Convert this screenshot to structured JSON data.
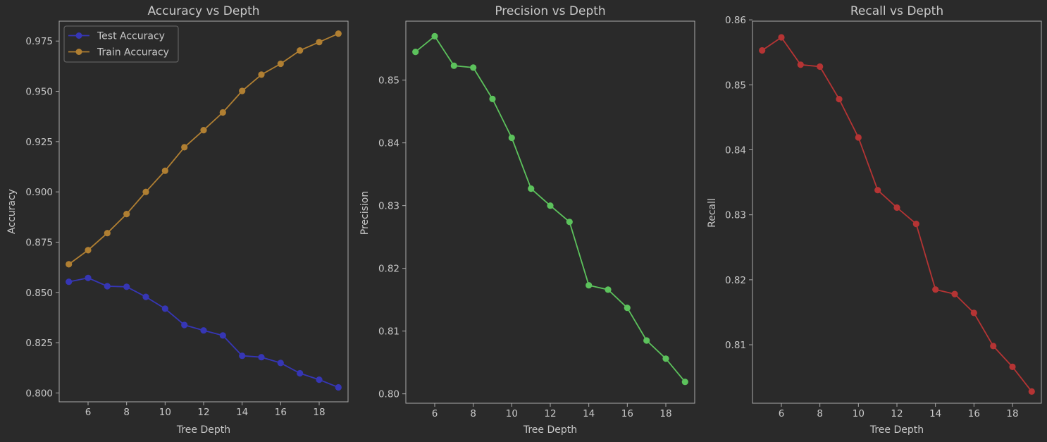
{
  "colors": {
    "background": "#2a2a2a",
    "axes_face": "#2a2a2a",
    "spine": "#aaaaaa",
    "text": "#c8c8c8",
    "test_accuracy": "#3636b5",
    "train_accuracy": "#b07f32",
    "precision": "#5cc25c",
    "recall": "#b53434"
  },
  "chart_data": [
    {
      "type": "line",
      "title": "Accuracy vs Depth",
      "xlabel": "Tree Depth",
      "ylabel": "Accuracy",
      "x": [
        5,
        6,
        7,
        8,
        9,
        10,
        11,
        12,
        13,
        14,
        15,
        16,
        17,
        18,
        19
      ],
      "xlim": [
        4.5,
        19.5
      ],
      "ylim": [
        0.7956,
        0.9849
      ],
      "xticks": [
        6,
        8,
        10,
        12,
        14,
        16,
        18
      ],
      "yticks": [
        "0.800",
        "0.825",
        "0.850",
        "0.875",
        "0.900",
        "0.925",
        "0.950",
        "0.975"
      ],
      "grid": false,
      "legend": "top-left",
      "series": [
        {
          "name": "Test Accuracy",
          "color": "#3636b5",
          "values": [
            0.8553,
            0.8572,
            0.8531,
            0.8528,
            0.8478,
            0.8419,
            0.8338,
            0.8311,
            0.8286,
            0.8185,
            0.8178,
            0.8149,
            0.8098,
            0.8066,
            0.8028
          ]
        },
        {
          "name": "Train Accuracy",
          "color": "#b07f32",
          "values": [
            0.864,
            0.871,
            0.8795,
            0.889,
            0.9,
            0.9105,
            0.9222,
            0.9307,
            0.9395,
            0.9502,
            0.9583,
            0.9637,
            0.9703,
            0.9745,
            0.9787
          ]
        }
      ]
    },
    {
      "type": "line",
      "title": "Precision vs Depth",
      "xlabel": "Tree Depth",
      "ylabel": "Precision",
      "x": [
        5,
        6,
        7,
        8,
        9,
        10,
        11,
        12,
        13,
        14,
        15,
        16,
        17,
        18,
        19
      ],
      "xlim": [
        4.5,
        19.5
      ],
      "ylim": [
        0.7985,
        0.8594
      ],
      "xticks": [
        6,
        8,
        10,
        12,
        14,
        16,
        18
      ],
      "yticks": [
        "0.80",
        "0.81",
        "0.82",
        "0.83",
        "0.84",
        "0.85"
      ],
      "grid": false,
      "series": [
        {
          "color": "#5cc25c",
          "values": [
            0.8545,
            0.857,
            0.8523,
            0.852,
            0.847,
            0.8408,
            0.8327,
            0.83,
            0.8274,
            0.8173,
            0.8166,
            0.8137,
            0.8085,
            0.8056,
            0.8019
          ]
        }
      ]
    },
    {
      "type": "line",
      "title": "Recall vs Depth",
      "xlabel": "Tree Depth",
      "ylabel": "Recall",
      "x": [
        5,
        6,
        7,
        8,
        9,
        10,
        11,
        12,
        13,
        14,
        15,
        16,
        17,
        18,
        19
      ],
      "xlim": [
        4.5,
        19.5
      ],
      "ylim": [
        0.801,
        0.8598
      ],
      "xticks": [
        6,
        8,
        10,
        12,
        14,
        16,
        18
      ],
      "yticks": [
        "0.81",
        "0.82",
        "0.83",
        "0.84",
        "0.85",
        "0.86"
      ],
      "grid": false,
      "series": [
        {
          "color": "#b53434",
          "values": [
            0.8553,
            0.8573,
            0.8531,
            0.8528,
            0.8478,
            0.8419,
            0.8338,
            0.8311,
            0.8286,
            0.8185,
            0.8178,
            0.8149,
            0.8098,
            0.8066,
            0.8028
          ]
        }
      ]
    }
  ]
}
